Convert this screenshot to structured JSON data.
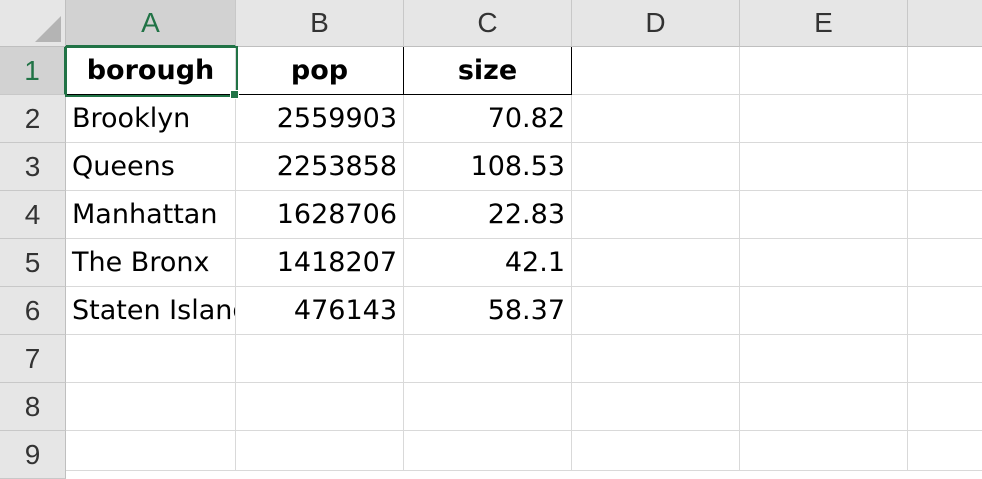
{
  "columns": [
    "A",
    "B",
    "C",
    "D",
    "E"
  ],
  "rows": [
    "1",
    "2",
    "3",
    "4",
    "5",
    "6",
    "7",
    "8",
    "9"
  ],
  "header": {
    "a": "borough",
    "b": "pop",
    "c": "size"
  },
  "data": [
    {
      "borough": "Brooklyn",
      "pop": "2559903",
      "size": "70.82"
    },
    {
      "borough": "Queens",
      "pop": "2253858",
      "size": "108.53"
    },
    {
      "borough": "Manhattan",
      "pop": "1628706",
      "size": "22.83"
    },
    {
      "borough": "The Bronx",
      "pop": "1418207",
      "size": "42.1"
    },
    {
      "borough": "Staten Island",
      "pop": "476143",
      "size": "58.37"
    }
  ],
  "selection": {
    "active_cell": "A1"
  },
  "colors": {
    "accent": "#217346",
    "header_bg": "#e6e6e6",
    "grid": "#d9d9d9"
  }
}
